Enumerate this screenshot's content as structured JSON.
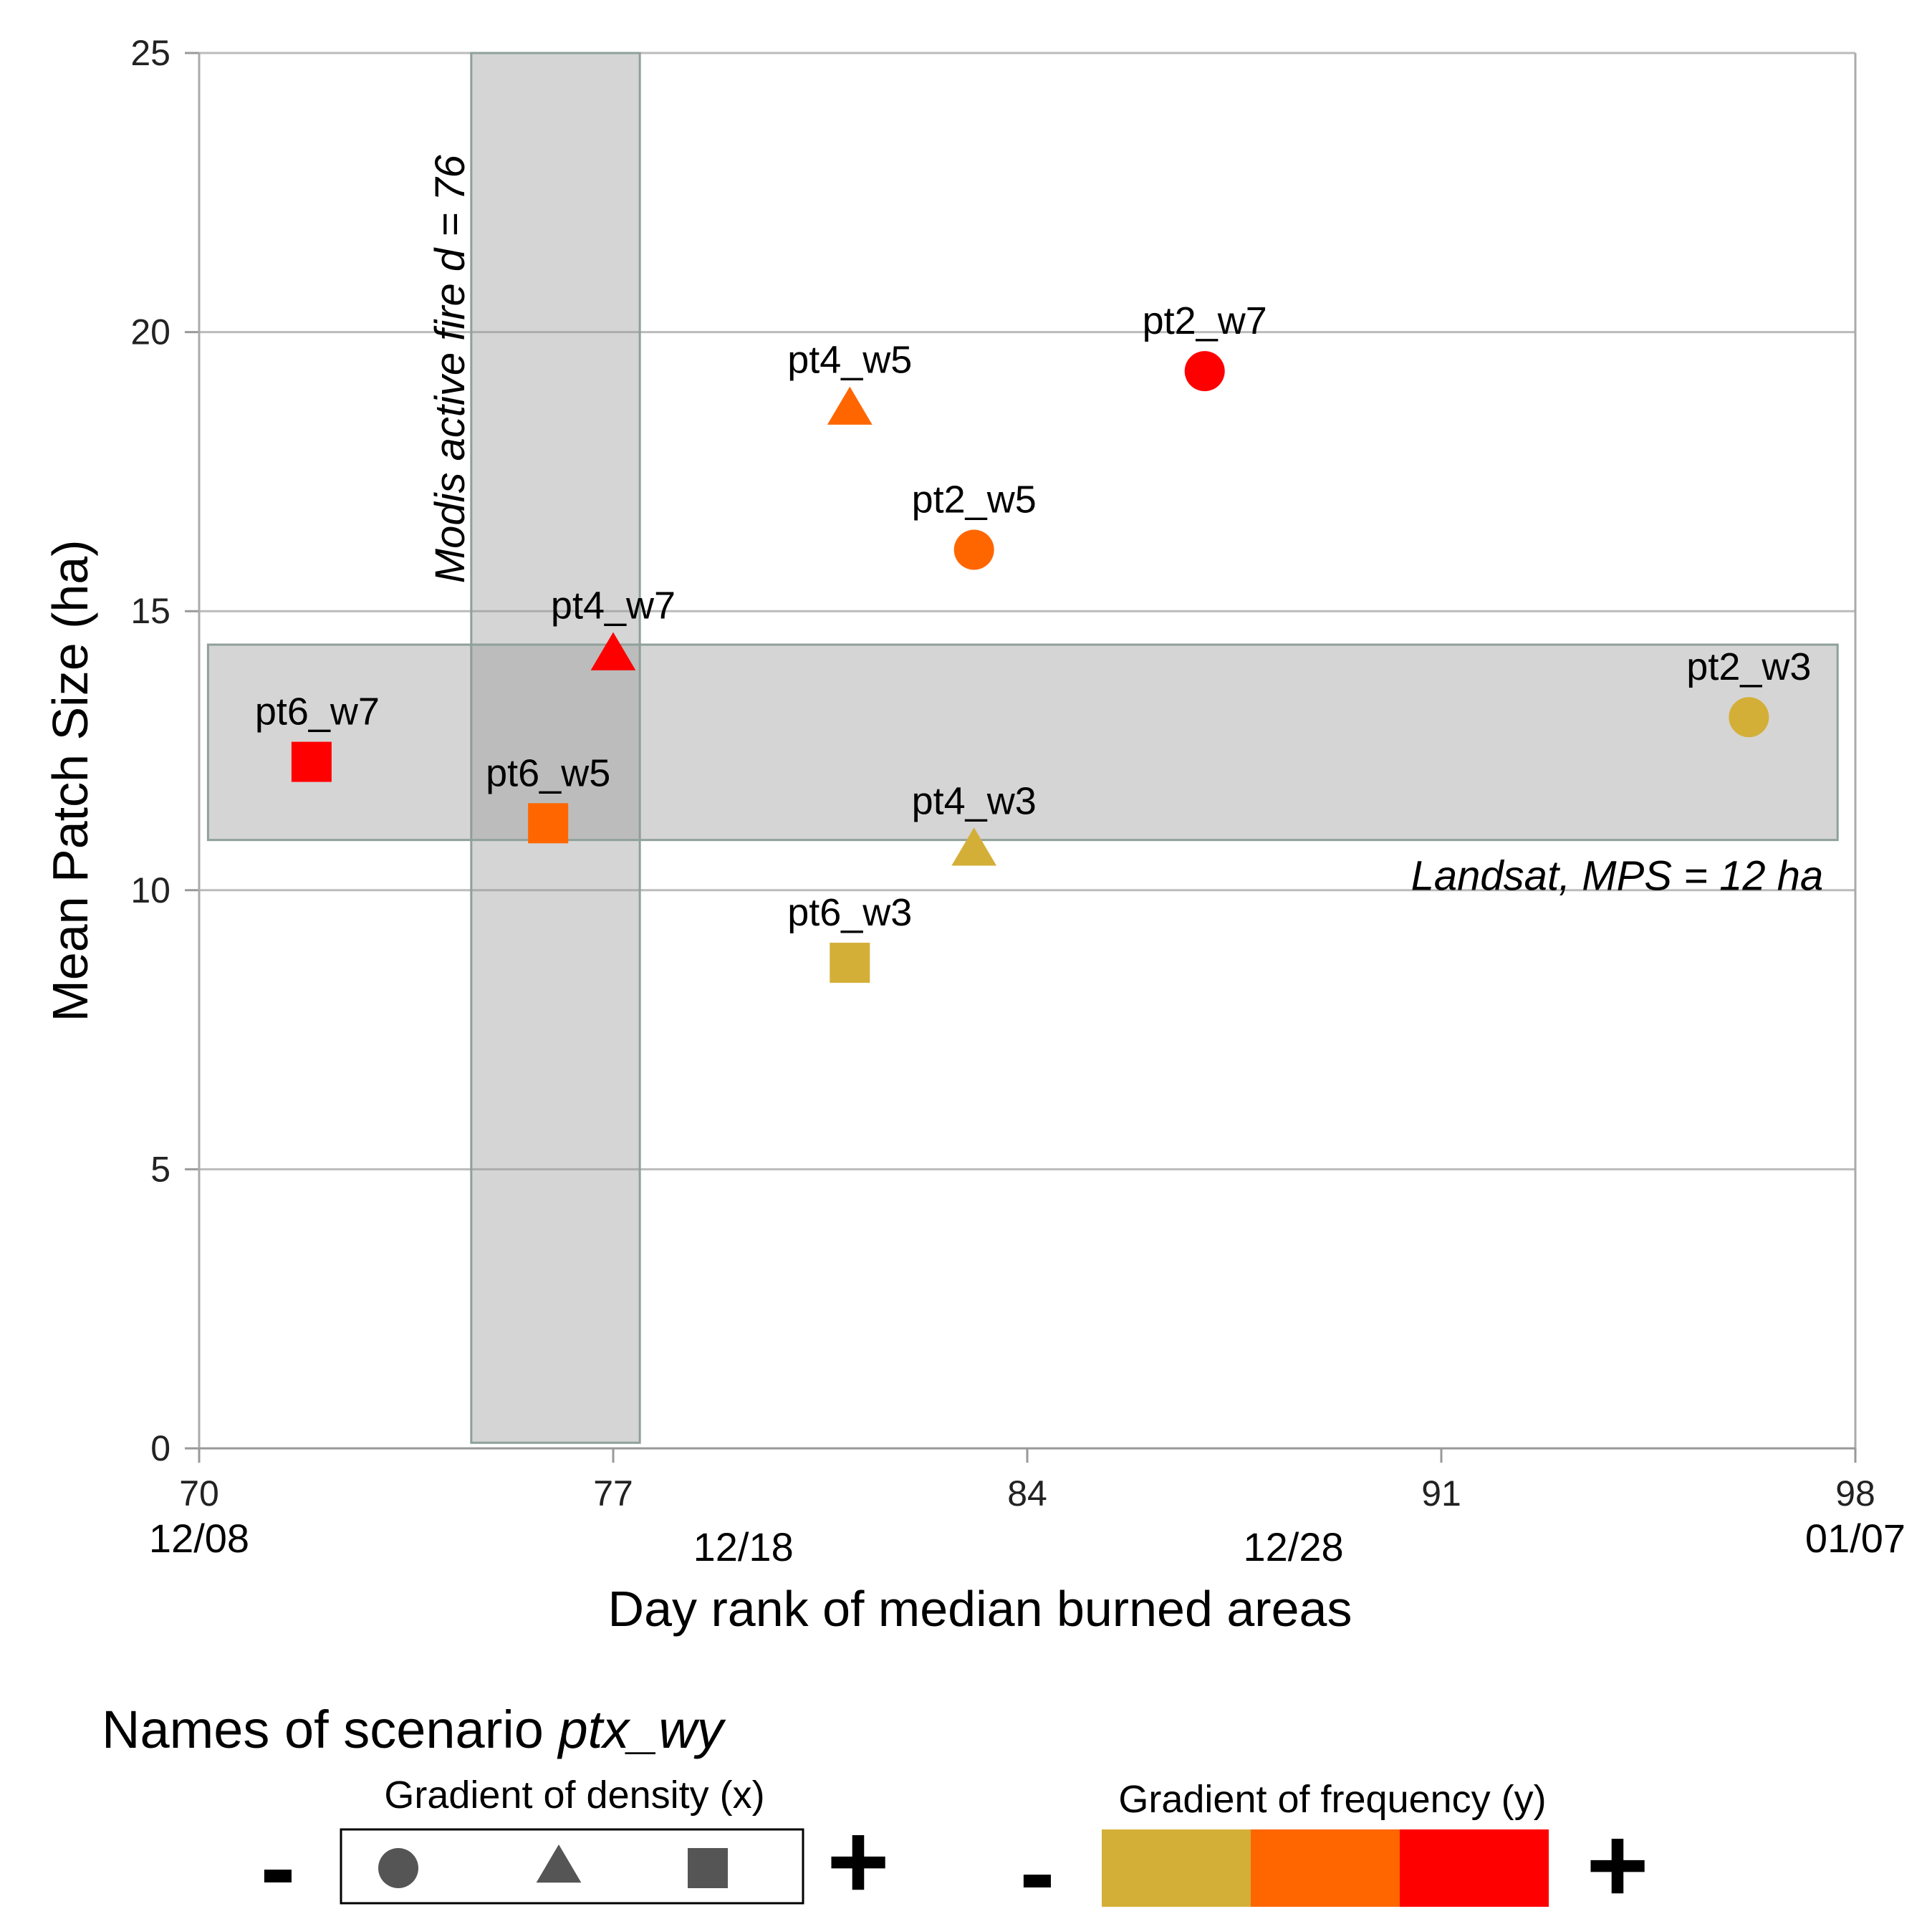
{
  "chart_data": {
    "type": "scatter",
    "title": "",
    "xlabel": "Day rank of median burned areas",
    "ylabel": "Mean Patch Size (ha)",
    "xlim": [
      70,
      98
    ],
    "ylim": [
      0,
      25
    ],
    "x_ticks": [
      "70",
      "77",
      "84",
      "91",
      "98"
    ],
    "y_ticks": [
      "0",
      "5",
      "10",
      "15",
      "20",
      "25"
    ],
    "date_labels": [
      {
        "day": 70,
        "text": "12/08"
      },
      {
        "day": 79.2,
        "text": "12/18"
      },
      {
        "day": 88.5,
        "text": "12/28"
      },
      {
        "day": 98,
        "text": "01/07"
      }
    ],
    "grid": "horizontal",
    "points": [
      {
        "label": "pt2_w7",
        "x": 87.0,
        "y": 19.3,
        "shape": "circle",
        "color": "#ff0000"
      },
      {
        "label": "pt4_w5",
        "x": 81.0,
        "y": 18.6,
        "shape": "triangle",
        "color": "#ff6600"
      },
      {
        "label": "pt2_w5",
        "x": 83.1,
        "y": 16.1,
        "shape": "circle",
        "color": "#ff6600"
      },
      {
        "label": "pt4_w7",
        "x": 77.0,
        "y": 14.2,
        "shape": "triangle",
        "color": "#ff0000"
      },
      {
        "label": "pt2_w3",
        "x": 96.2,
        "y": 13.1,
        "shape": "circle",
        "color": "#d4af37"
      },
      {
        "label": "pt6_w7",
        "x": 71.9,
        "y": 12.3,
        "shape": "square",
        "color": "#ff0000"
      },
      {
        "label": "pt6_w5",
        "x": 75.9,
        "y": 11.2,
        "shape": "square",
        "color": "#ff6600"
      },
      {
        "label": "pt4_w3",
        "x": 83.1,
        "y": 10.7,
        "shape": "triangle",
        "color": "#d4af37"
      },
      {
        "label": "pt6_w3",
        "x": 81.0,
        "y": 8.7,
        "shape": "square",
        "color": "#d4af37"
      }
    ],
    "bands": [
      {
        "orientation": "vertical",
        "x_range": [
          74.6,
          77.45
        ],
        "y_range": [
          0.1,
          25
        ],
        "label": "Modis active fire d = 76"
      },
      {
        "orientation": "horizontal",
        "x_range": [
          70.15,
          97.7
        ],
        "y_range": [
          10.9,
          14.4
        ],
        "label": "Landsat, MPS = 12 ha"
      }
    ]
  },
  "legend": {
    "title_prefix": "Names of scenario ",
    "title_italic": "ptx_wy",
    "density_label": "Gradient of density (x)",
    "frequency_label": "Gradient of frequency (y)",
    "minus": "-",
    "plus": "+",
    "shape_color": "#555555",
    "shapes": [
      "circle",
      "triangle",
      "square"
    ],
    "frequency_colors": [
      "#d4af37",
      "#ff6600",
      "#ff0000"
    ]
  }
}
